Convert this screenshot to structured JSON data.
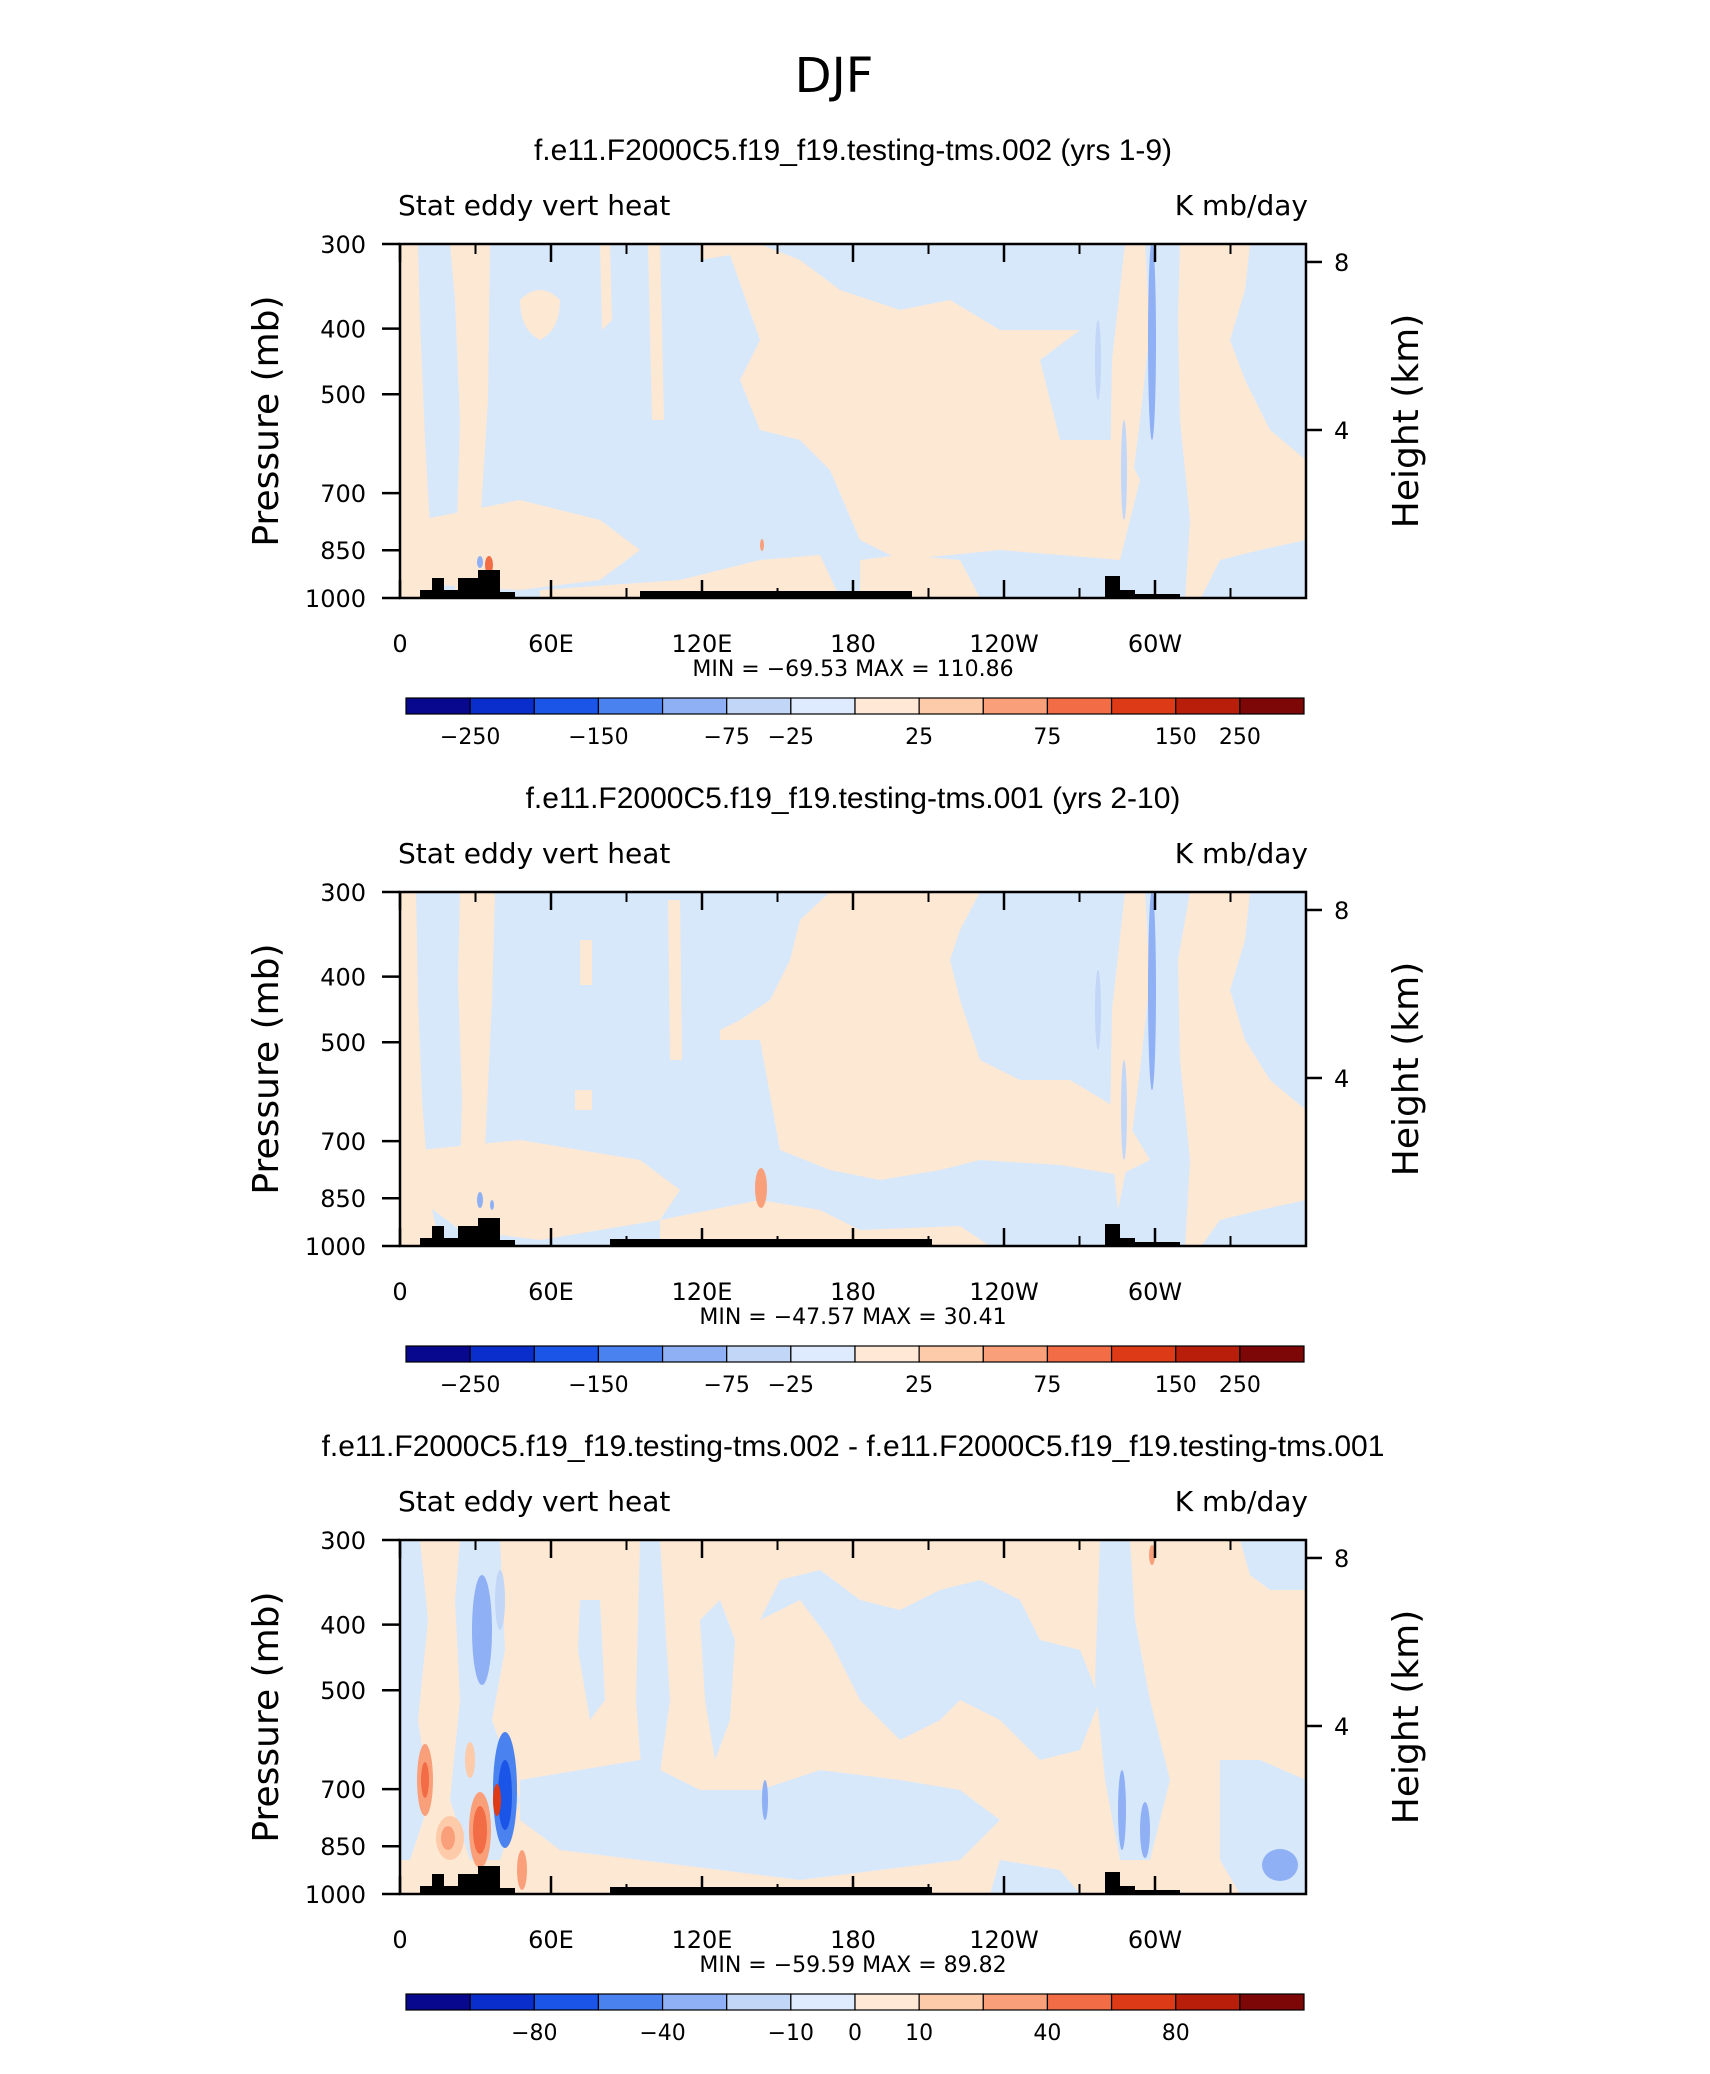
{
  "figure_title": "DJF",
  "panels": [
    {
      "title": "f.e11.F2000C5.f19_f19.testing-tms.002 (yrs 1-9)",
      "left_label": "Stat eddy vert heat",
      "right_label": "K mb/day",
      "min_max": "MIN = −69.53   MAX = 110.86",
      "colorbar_labels": [
        "−250",
        "−150",
        "−75",
        "−25",
        "25",
        "75",
        "150",
        "250"
      ]
    },
    {
      "title": "f.e11.F2000C5.f19_f19.testing-tms.001 (yrs 2-10)",
      "left_label": "Stat eddy vert heat",
      "right_label": "K mb/day",
      "min_max": "MIN = −47.57   MAX =   30.41",
      "colorbar_labels": [
        "−250",
        "−150",
        "−75",
        "−25",
        "25",
        "75",
        "150",
        "250"
      ]
    },
    {
      "title": "f.e11.F2000C5.f19_f19.testing-tms.002 - f.e11.F2000C5.f19_f19.testing-tms.001",
      "left_label": "Stat eddy vert heat",
      "right_label": "K mb/day",
      "min_max": "MIN = −59.59   MAX =   89.82",
      "colorbar_labels": [
        "−80",
        "−40",
        "−10",
        "0",
        "10",
        "40",
        "80"
      ]
    }
  ],
  "axis_labels": {
    "y_left": "Pressure (mb)",
    "y_right": "Height (km)",
    "y_ticks": [
      "300",
      "400",
      "500",
      "700",
      "850",
      "1000"
    ],
    "x_ticks": [
      "0",
      "60E",
      "120E",
      "180",
      "120W",
      "60W"
    ],
    "y_right_ticks": [
      "8",
      "4"
    ]
  },
  "colors": {
    "colorbar": [
      "#08088f",
      "#0a2ecc",
      "#1a55e8",
      "#4a82f0",
      "#8fb0f5",
      "#c2d6f8",
      "#deeafd",
      "#ffe9d6",
      "#fdcbaa",
      "#f9a07a",
      "#f26d45",
      "#dd3b17",
      "#b81e0a",
      "#7d0606"
    ],
    "light_blue": "#d8e8fb",
    "light_orange": "#fde8d4",
    "terrain": "#000000"
  },
  "chart_data": [
    {
      "type": "contour",
      "title": "f.e11.F2000C5.f19_f19.testing-tms.002 (yrs 1-9)",
      "variable": "Stat eddy vert heat",
      "units": "K mb/day",
      "xlabel": "",
      "ylabel": "Pressure (mb)",
      "ylabel_right": "Height (km)",
      "xlim": [
        0,
        360
      ],
      "ylim_pressure": [
        1000,
        300
      ],
      "min": -69.53,
      "max": 110.86,
      "contour_levels": [
        -250,
        -150,
        -75,
        -25,
        25,
        75,
        150,
        250
      ]
    },
    {
      "type": "contour",
      "title": "f.e11.F2000C5.f19_f19.testing-tms.001 (yrs 2-10)",
      "variable": "Stat eddy vert heat",
      "units": "K mb/day",
      "xlabel": "",
      "ylabel": "Pressure (mb)",
      "ylabel_right": "Height (km)",
      "xlim": [
        0,
        360
      ],
      "ylim_pressure": [
        1000,
        300
      ],
      "min": -47.57,
      "max": 30.41,
      "contour_levels": [
        -250,
        -150,
        -75,
        -25,
        25,
        75,
        150,
        250
      ]
    },
    {
      "type": "contour",
      "title": "f.e11.F2000C5.f19_f19.testing-tms.002 - f.e11.F2000C5.f19_f19.testing-tms.001",
      "variable": "Stat eddy vert heat",
      "units": "K mb/day",
      "xlabel": "",
      "ylabel": "Pressure (mb)",
      "ylabel_right": "Height (km)",
      "xlim": [
        0,
        360
      ],
      "ylim_pressure": [
        1000,
        300
      ],
      "min": -59.59,
      "max": 89.82,
      "contour_levels": [
        -80,
        -40,
        -10,
        0,
        10,
        40,
        80
      ]
    }
  ]
}
